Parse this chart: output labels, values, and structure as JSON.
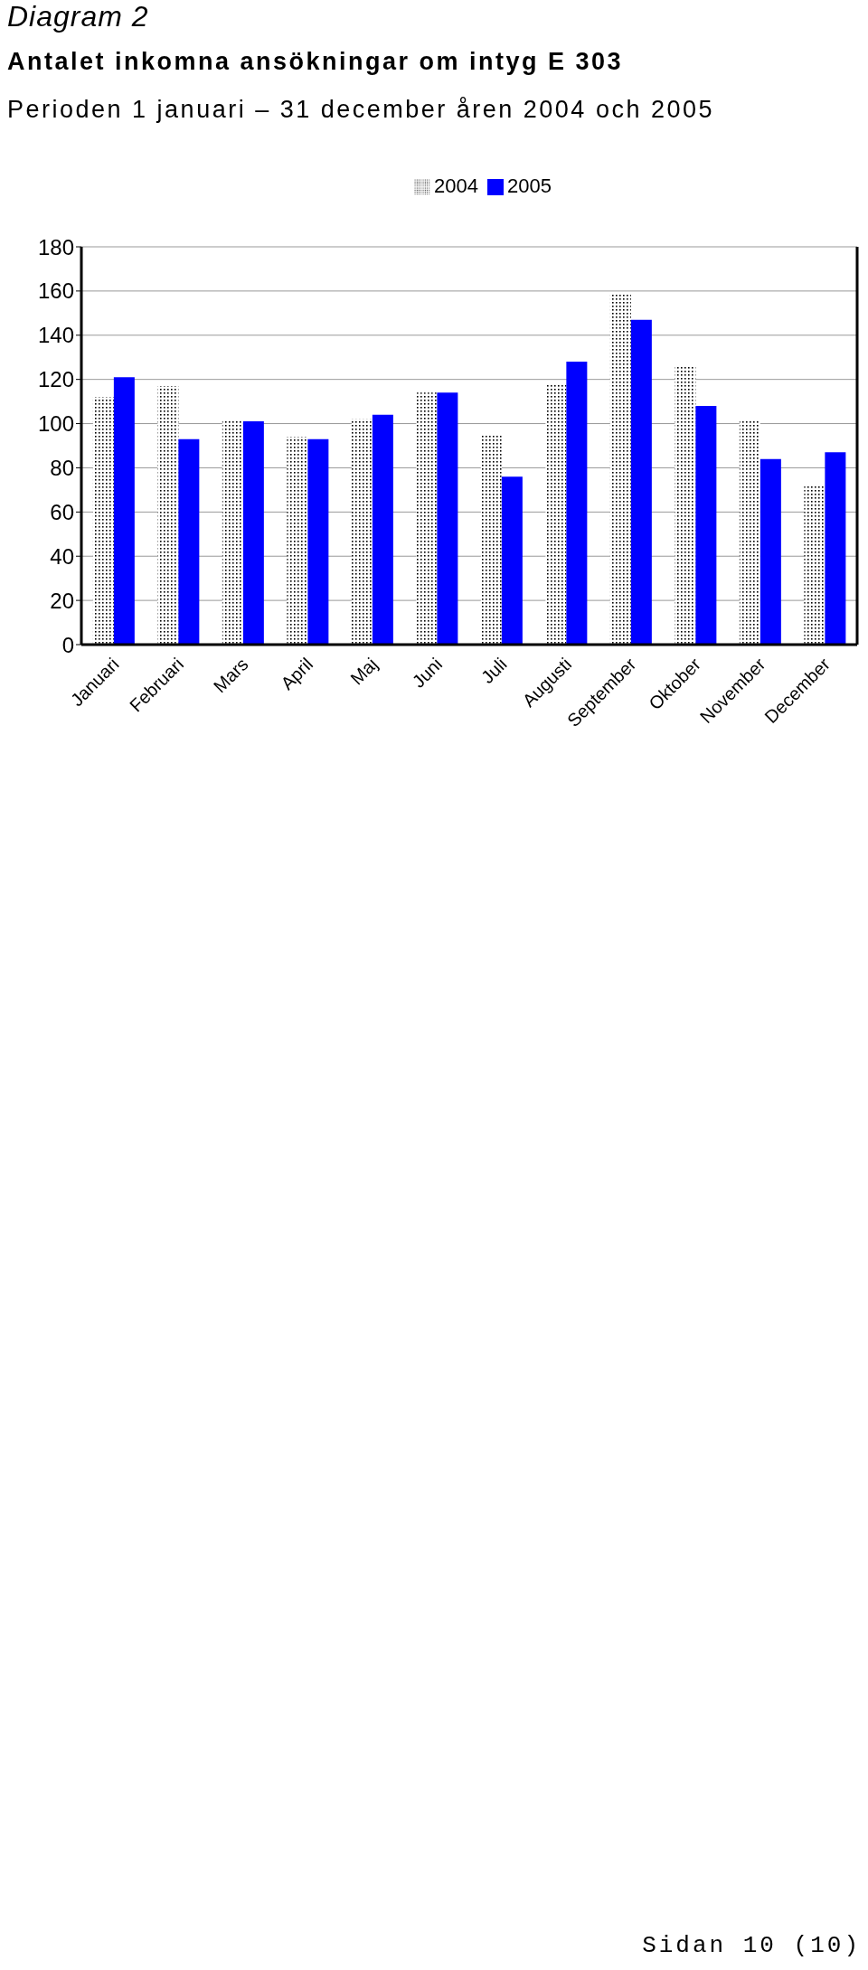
{
  "chart_data": {
    "type": "bar",
    "title": "Antalet inkomna ansökningar om intyg E 303",
    "subtitle": "Perioden 1 januari – 31 december åren 2004 och 2005",
    "annotations": [
      "Diagram 2",
      "Sidan 10 (10)"
    ],
    "categories": [
      "Januari",
      "Februari",
      "Mars",
      "April",
      "Maj",
      "Juni",
      "Juli",
      "Augusti",
      "September",
      "Oktober",
      "November",
      "December"
    ],
    "series": [
      {
        "name": "2004",
        "color": "#000000",
        "values": [
          112,
          117,
          101,
          94,
          102,
          114,
          95,
          118,
          159,
          126,
          101,
          72
        ]
      },
      {
        "name": "2005",
        "color": "#0000ff",
        "values": [
          121,
          93,
          101,
          93,
          104,
          114,
          76,
          128,
          147,
          108,
          84,
          87
        ]
      }
    ],
    "ylim": [
      0,
      180
    ],
    "yticks": [
      0,
      20,
      40,
      60,
      80,
      100,
      120,
      140,
      160,
      180
    ],
    "grid": "y",
    "legend": "top"
  }
}
